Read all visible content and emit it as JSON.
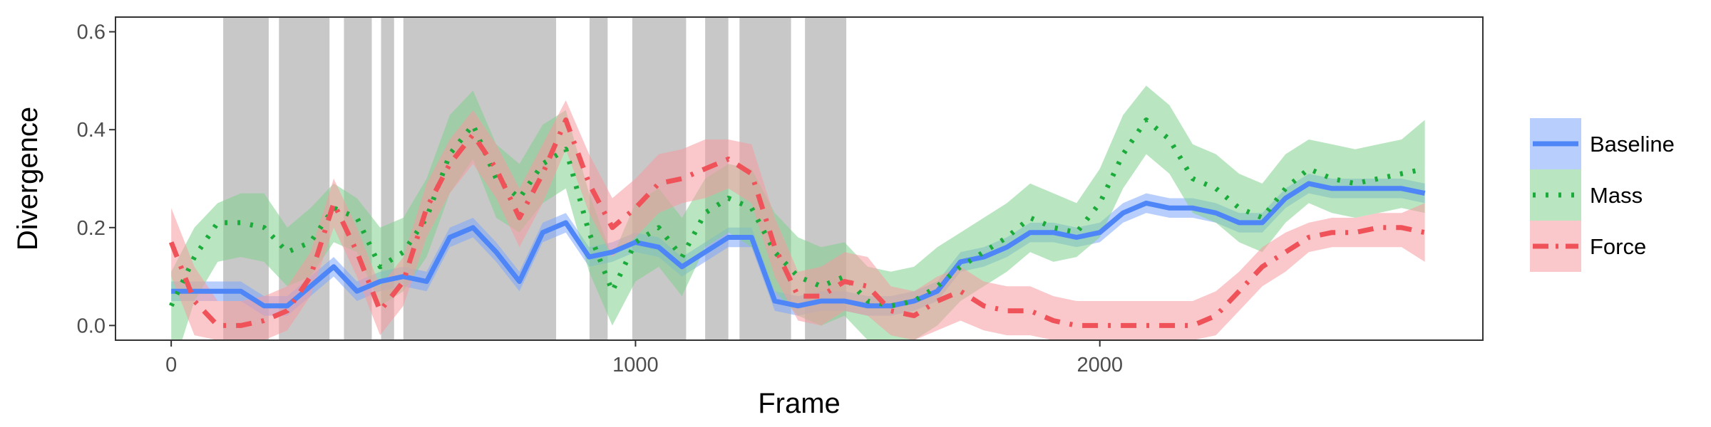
{
  "chart_data": {
    "type": "line",
    "title": "",
    "xlabel": "Frame",
    "ylabel": "Divergence",
    "xlim": [
      -120,
      2825
    ],
    "ylim": [
      -0.03,
      0.63
    ],
    "x_ticks": [
      0,
      1000,
      2000
    ],
    "x_tick_labels": [
      "0",
      "1000",
      "2000"
    ],
    "y_ticks": [
      0.0,
      0.2,
      0.4,
      0.6
    ],
    "y_tick_labels": [
      "0.0",
      "0.2",
      "0.4",
      "0.6"
    ],
    "grid": false,
    "legend_position": "right",
    "shaded_intervals": [
      [
        112,
        210
      ],
      [
        232,
        341
      ],
      [
        372,
        432
      ],
      [
        452,
        480
      ],
      [
        500,
        829
      ],
      [
        901,
        940
      ],
      [
        993,
        1109
      ],
      [
        1150,
        1200
      ],
      [
        1224,
        1335
      ],
      [
        1365,
        1454
      ]
    ],
    "series": [
      {
        "name": "Baseline",
        "color": "#4f86f7",
        "band_color": "#7ea8fb",
        "style": "solid",
        "x": [
          0,
          50,
          100,
          150,
          200,
          250,
          300,
          350,
          400,
          450,
          500,
          550,
          600,
          650,
          700,
          750,
          800,
          850,
          900,
          950,
          1000,
          1050,
          1100,
          1150,
          1200,
          1250,
          1300,
          1350,
          1400,
          1450,
          1500,
          1550,
          1600,
          1650,
          1700,
          1750,
          1800,
          1850,
          1900,
          1950,
          2000,
          2050,
          2100,
          2150,
          2200,
          2250,
          2300,
          2350,
          2400,
          2450,
          2500,
          2550,
          2600,
          2650,
          2700
        ],
        "y": [
          0.07,
          0.07,
          0.07,
          0.07,
          0.04,
          0.04,
          0.08,
          0.12,
          0.07,
          0.09,
          0.1,
          0.09,
          0.18,
          0.2,
          0.15,
          0.09,
          0.19,
          0.21,
          0.14,
          0.15,
          0.17,
          0.16,
          0.12,
          0.15,
          0.18,
          0.18,
          0.05,
          0.04,
          0.05,
          0.05,
          0.04,
          0.04,
          0.05,
          0.07,
          0.13,
          0.14,
          0.16,
          0.19,
          0.19,
          0.18,
          0.19,
          0.23,
          0.25,
          0.24,
          0.24,
          0.23,
          0.21,
          0.21,
          0.26,
          0.29,
          0.28,
          0.28,
          0.28,
          0.28,
          0.27
        ],
        "lower": [
          0.05,
          0.05,
          0.05,
          0.05,
          0.02,
          0.02,
          0.06,
          0.1,
          0.05,
          0.07,
          0.08,
          0.07,
          0.16,
          0.18,
          0.13,
          0.07,
          0.17,
          0.19,
          0.12,
          0.13,
          0.15,
          0.14,
          0.1,
          0.13,
          0.16,
          0.16,
          0.03,
          0.02,
          0.03,
          0.03,
          0.02,
          0.02,
          0.03,
          0.05,
          0.11,
          0.12,
          0.14,
          0.17,
          0.17,
          0.16,
          0.17,
          0.21,
          0.23,
          0.22,
          0.22,
          0.21,
          0.19,
          0.19,
          0.24,
          0.27,
          0.26,
          0.26,
          0.26,
          0.26,
          0.25
        ],
        "upper": [
          0.09,
          0.09,
          0.09,
          0.09,
          0.06,
          0.06,
          0.1,
          0.14,
          0.09,
          0.11,
          0.12,
          0.11,
          0.2,
          0.22,
          0.17,
          0.11,
          0.21,
          0.23,
          0.16,
          0.17,
          0.19,
          0.18,
          0.14,
          0.17,
          0.2,
          0.2,
          0.07,
          0.06,
          0.07,
          0.07,
          0.06,
          0.06,
          0.07,
          0.09,
          0.15,
          0.16,
          0.18,
          0.21,
          0.21,
          0.2,
          0.21,
          0.25,
          0.27,
          0.26,
          0.26,
          0.25,
          0.23,
          0.23,
          0.28,
          0.31,
          0.3,
          0.3,
          0.3,
          0.3,
          0.29
        ]
      },
      {
        "name": "Mass",
        "color": "#1aab3a",
        "band_color": "#7fd18e",
        "style": "dotted",
        "x": [
          0,
          50,
          100,
          150,
          200,
          250,
          300,
          350,
          400,
          450,
          500,
          550,
          600,
          650,
          700,
          750,
          800,
          850,
          900,
          950,
          1000,
          1050,
          1100,
          1150,
          1200,
          1250,
          1300,
          1350,
          1400,
          1450,
          1500,
          1550,
          1600,
          1650,
          1700,
          1750,
          1800,
          1850,
          1900,
          1950,
          2000,
          2050,
          2100,
          2150,
          2200,
          2250,
          2300,
          2350,
          2400,
          2450,
          2500,
          2550,
          2600,
          2650,
          2700
        ],
        "y": [
          0.04,
          0.14,
          0.21,
          0.21,
          0.2,
          0.15,
          0.17,
          0.24,
          0.22,
          0.12,
          0.15,
          0.22,
          0.35,
          0.41,
          0.3,
          0.26,
          0.33,
          0.36,
          0.19,
          0.07,
          0.17,
          0.2,
          0.14,
          0.23,
          0.26,
          0.24,
          0.15,
          0.1,
          0.08,
          0.1,
          0.05,
          0.04,
          0.05,
          0.08,
          0.12,
          0.15,
          0.18,
          0.22,
          0.2,
          0.19,
          0.25,
          0.35,
          0.42,
          0.38,
          0.3,
          0.28,
          0.24,
          0.22,
          0.28,
          0.32,
          0.3,
          0.29,
          0.3,
          0.31,
          0.32
        ],
        "lower": [
          -0.1,
          0.05,
          0.13,
          0.14,
          0.13,
          0.08,
          0.1,
          0.17,
          0.15,
          0.04,
          0.07,
          0.14,
          0.27,
          0.34,
          0.22,
          0.19,
          0.25,
          0.28,
          0.11,
          0.0,
          0.09,
          0.12,
          0.06,
          0.16,
          0.19,
          0.16,
          0.07,
          0.02,
          0.0,
          0.02,
          -0.03,
          -0.04,
          -0.03,
          0.0,
          0.05,
          0.08,
          0.11,
          0.15,
          0.13,
          0.14,
          0.18,
          0.28,
          0.35,
          0.31,
          0.23,
          0.21,
          0.17,
          0.15,
          0.21,
          0.25,
          0.23,
          0.22,
          0.23,
          0.24,
          0.23
        ],
        "upper": [
          0.11,
          0.2,
          0.25,
          0.27,
          0.27,
          0.2,
          0.24,
          0.29,
          0.26,
          0.2,
          0.22,
          0.3,
          0.43,
          0.48,
          0.37,
          0.33,
          0.41,
          0.44,
          0.27,
          0.14,
          0.25,
          0.28,
          0.22,
          0.3,
          0.33,
          0.32,
          0.23,
          0.18,
          0.16,
          0.17,
          0.12,
          0.11,
          0.12,
          0.16,
          0.19,
          0.22,
          0.25,
          0.29,
          0.27,
          0.25,
          0.32,
          0.43,
          0.49,
          0.45,
          0.37,
          0.35,
          0.31,
          0.29,
          0.35,
          0.38,
          0.37,
          0.36,
          0.37,
          0.38,
          0.42
        ]
      },
      {
        "name": "Force",
        "color": "#f0525a",
        "band_color": "#f59aa0",
        "style": "dashdot",
        "x": [
          0,
          50,
          100,
          150,
          200,
          250,
          300,
          350,
          400,
          450,
          500,
          550,
          600,
          650,
          700,
          750,
          800,
          850,
          900,
          950,
          1000,
          1050,
          1100,
          1150,
          1200,
          1250,
          1300,
          1350,
          1400,
          1450,
          1500,
          1550,
          1600,
          1650,
          1700,
          1750,
          1800,
          1850,
          1900,
          1950,
          2000,
          2050,
          2100,
          2150,
          2200,
          2250,
          2300,
          2350,
          2400,
          2450,
          2500,
          2550,
          2600,
          2650,
          2700
        ],
        "y": [
          0.17,
          0.05,
          0.0,
          0.0,
          0.01,
          0.03,
          0.1,
          0.25,
          0.15,
          0.03,
          0.09,
          0.24,
          0.33,
          0.39,
          0.32,
          0.22,
          0.31,
          0.42,
          0.29,
          0.2,
          0.24,
          0.29,
          0.3,
          0.32,
          0.34,
          0.31,
          0.16,
          0.06,
          0.06,
          0.09,
          0.08,
          0.03,
          0.02,
          0.05,
          0.07,
          0.04,
          0.03,
          0.03,
          0.01,
          0.0,
          0.0,
          0.0,
          0.0,
          0.0,
          0.0,
          0.02,
          0.07,
          0.12,
          0.15,
          0.18,
          0.19,
          0.19,
          0.2,
          0.2,
          0.19
        ],
        "lower": [
          0.1,
          -0.02,
          -0.03,
          -0.03,
          -0.03,
          -0.01,
          0.06,
          0.2,
          0.1,
          -0.02,
          0.04,
          0.18,
          0.27,
          0.33,
          0.26,
          0.16,
          0.25,
          0.36,
          0.23,
          0.14,
          0.18,
          0.23,
          0.25,
          0.26,
          0.28,
          0.25,
          0.1,
          0.01,
          0.0,
          0.03,
          0.02,
          -0.02,
          -0.03,
          -0.01,
          0.01,
          -0.01,
          -0.02,
          -0.02,
          -0.03,
          -0.03,
          -0.03,
          -0.03,
          -0.03,
          -0.03,
          -0.03,
          -0.02,
          0.03,
          0.08,
          0.11,
          0.15,
          0.16,
          0.16,
          0.16,
          0.16,
          0.13
        ],
        "upper": [
          0.24,
          0.12,
          0.05,
          0.05,
          0.06,
          0.08,
          0.15,
          0.3,
          0.2,
          0.08,
          0.14,
          0.29,
          0.38,
          0.44,
          0.37,
          0.28,
          0.37,
          0.46,
          0.35,
          0.26,
          0.3,
          0.35,
          0.36,
          0.38,
          0.38,
          0.37,
          0.22,
          0.11,
          0.12,
          0.15,
          0.14,
          0.08,
          0.07,
          0.1,
          0.12,
          0.09,
          0.08,
          0.08,
          0.06,
          0.05,
          0.05,
          0.05,
          0.05,
          0.05,
          0.05,
          0.07,
          0.11,
          0.16,
          0.19,
          0.21,
          0.22,
          0.22,
          0.23,
          0.23,
          0.25
        ]
      }
    ]
  }
}
